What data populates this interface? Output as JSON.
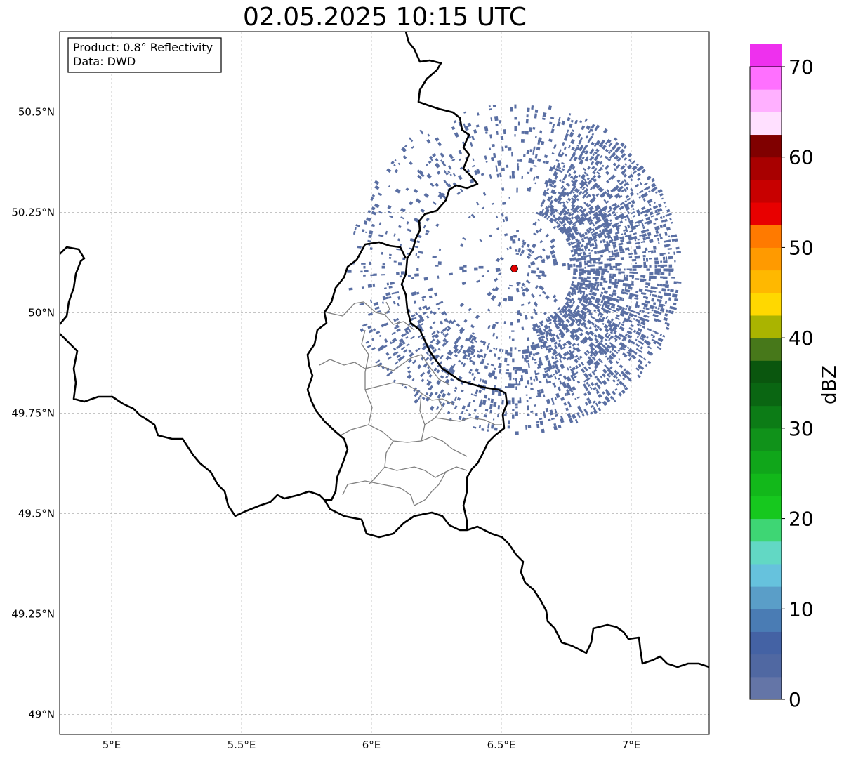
{
  "title": "02.05.2025 10:15 UTC",
  "info_box": {
    "product": "Product: 0.8° Reflectivity",
    "data": "Data: DWD"
  },
  "map": {
    "lon_ticks": [
      "5°E",
      "5.5°E",
      "6°E",
      "6.5°E",
      "7°E"
    ],
    "lat_ticks": [
      "50.5°N",
      "50.25°N",
      "50°N",
      "49.75°N",
      "49.5°N",
      "49.25°N",
      "49°N"
    ],
    "extent": {
      "lon_min": 4.8,
      "lon_max": 7.3,
      "lat_min": 48.95,
      "lat_max": 50.7
    },
    "radar_site": {
      "lon": 6.55,
      "lat": 50.11,
      "color": "#e00000"
    },
    "echo_color": "#5a6fa3",
    "border_color": "#000000",
    "district_color": "#808080",
    "grid_color": "#b0b0b0"
  },
  "colorbar": {
    "label": "dBZ",
    "tick_labels": [
      "0",
      "10",
      "20",
      "30",
      "40",
      "50",
      "60",
      "70"
    ],
    "min": 0,
    "max": 70,
    "colors": [
      "#6475a7",
      "#5068a2",
      "#4462a4",
      "#4a7cb4",
      "#5a9ec8",
      "#66c2dd",
      "#62d8c4",
      "#3ed674",
      "#16c81e",
      "#12b81a",
      "#10a61a",
      "#10921a",
      "#0c7c16",
      "#0a6612",
      "#0a560e",
      "#47781a",
      "#aab400",
      "#ffd800",
      "#ffb800",
      "#ff9a00",
      "#ff7a00",
      "#e80000",
      "#c80000",
      "#a80000",
      "#800000",
      "#ffe0ff",
      "#ffb0ff",
      "#ff70ff",
      "#ee30ee"
    ]
  }
}
